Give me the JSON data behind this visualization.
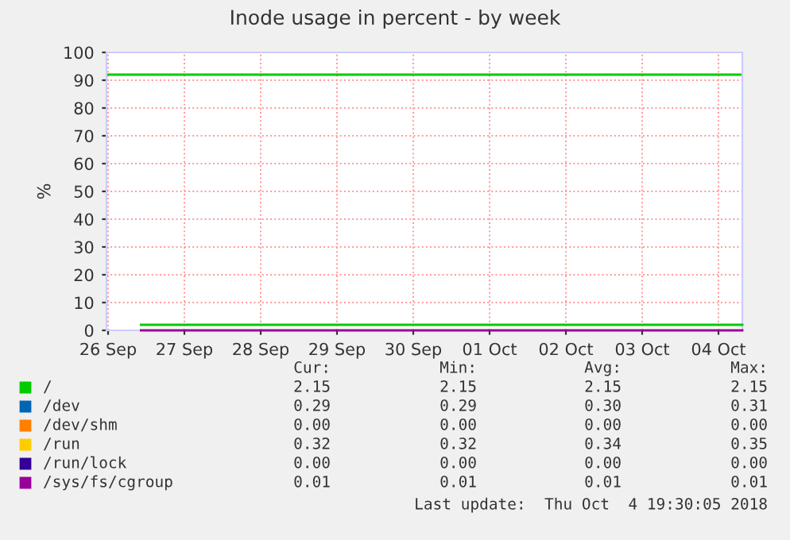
{
  "chart_data": {
    "type": "line",
    "title": "Inode usage in percent - by week",
    "ylabel": "%",
    "x": [
      "2018-09-26T22:20",
      "2018-10-02T20:10",
      "2018-10-02T20:20",
      "2018-10-02T20:30",
      "2018-10-04T19:30"
    ],
    "series": [
      {
        "name": "/",
        "color": "#00cc00",
        "values": [
          2,
          2,
          null,
          2,
          2
        ]
      },
      {
        "name": "/dev",
        "color": "#0066b3",
        "values": [
          null,
          null,
          null,
          null,
          null
        ]
      },
      {
        "name": "/dev/shm",
        "color": "#ff8000",
        "values": [
          null,
          null,
          null,
          null,
          null
        ]
      },
      {
        "name": "/run",
        "color": "#ffcc00",
        "values": [
          null,
          null,
          null,
          null,
          null
        ]
      },
      {
        "name": "/run/lock",
        "color": "#330099",
        "values": [
          null,
          null,
          null,
          null,
          null
        ]
      },
      {
        "name": "/sys/fs/cgroup",
        "color": "#990099",
        "values": [
          0,
          0,
          null,
          0,
          0
        ]
      }
    ],
    "ref_lines": [
      {
        "axis": "y",
        "value": 92,
        "color": "#00cc00"
      }
    ],
    "xlim": [
      "2018-09-26T11:30",
      "2018-10-04T19:30"
    ],
    "xticks": [
      {
        "value": "2018-09-26T12:00",
        "label": "26 Sep"
      },
      {
        "value": "2018-09-27T12:00",
        "label": "27 Sep"
      },
      {
        "value": "2018-09-28T12:00",
        "label": "28 Sep"
      },
      {
        "value": "2018-09-29T12:00",
        "label": "29 Sep"
      },
      {
        "value": "2018-09-30T12:00",
        "label": "30 Sep"
      },
      {
        "value": "2018-10-01T12:00",
        "label": "01 Oct"
      },
      {
        "value": "2018-10-02T12:00",
        "label": "02 Oct"
      },
      {
        "value": "2018-10-03T12:00",
        "label": "03 Oct"
      },
      {
        "value": "2018-10-04T12:00",
        "label": "04 Oct"
      }
    ],
    "ylim": [
      0,
      100
    ],
    "yticks": [
      0,
      10,
      20,
      30,
      40,
      50,
      60,
      70,
      80,
      90,
      100
    ],
    "grid": true,
    "legend": "bottom",
    "marker": "none",
    "line_style": "solid",
    "annotations": [
      "Cur:",
      "Min:",
      "Avg:",
      "Max:",
      "2.15",
      "2.15",
      "2.15",
      "2.15",
      "0.29",
      "0.29",
      "0.30",
      "0.31",
      "0.00",
      "0.00",
      "0.00",
      "0.00",
      "0.32",
      "0.32",
      "0.34",
      "0.35",
      "0.00",
      "0.00",
      "0.00",
      "0.00",
      "0.01",
      "0.01",
      "0.01",
      "0.01",
      "Last update:  Thu Oct  4 19:30:05 2018"
    ]
  }
}
